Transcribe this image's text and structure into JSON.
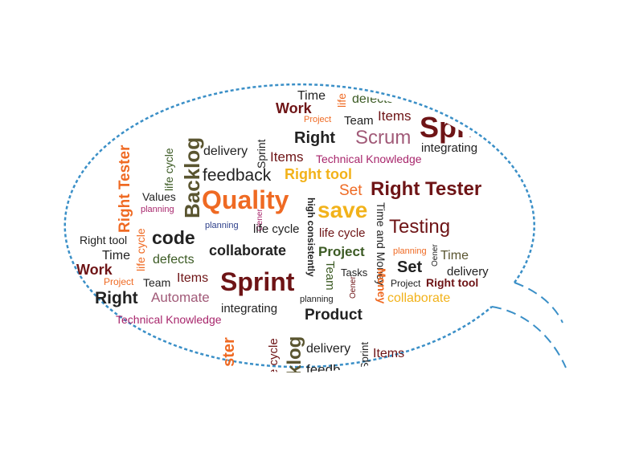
{
  "colors": {
    "outline": "#3a8fc7",
    "dark_red": "#6e1416",
    "orange": "#ef6a23",
    "olive": "#5a5530",
    "gold": "#f2b21a",
    "mauve": "#a15a78",
    "magenta": "#a8266c",
    "green": "#3b5a23",
    "gray": "#222222",
    "navy": "#2d3f8a"
  },
  "words": [
    {
      "id": "time-top",
      "text": "Time",
      "color": "#222222"
    },
    {
      "id": "life-top",
      "text": "life",
      "color": "#ef6a23"
    },
    {
      "id": "defects-top",
      "text": "defects",
      "color": "#3b5a23"
    },
    {
      "id": "work-top",
      "text": "Work",
      "color": "#6e1416"
    },
    {
      "id": "sprint-top",
      "text": "Sprint",
      "color": "#6e1416"
    },
    {
      "id": "project-top",
      "text": "Project",
      "color": "#ef6a23"
    },
    {
      "id": "team-top",
      "text": "Team",
      "color": "#222222"
    },
    {
      "id": "items-top",
      "text": "Items",
      "color": "#6e1416"
    },
    {
      "id": "right-top",
      "text": "Right",
      "color": "#222222"
    },
    {
      "id": "scrum",
      "text": "Scrum",
      "color": "#a15a78"
    },
    {
      "id": "integrating-top",
      "text": "integrating",
      "color": "#222222"
    },
    {
      "id": "backlog",
      "text": "Backlog",
      "color": "#5a5530"
    },
    {
      "id": "life-cycle-v1",
      "text": "life cycle",
      "color": "#3b5a23"
    },
    {
      "id": "delivery-top",
      "text": "delivery",
      "color": "#222222"
    },
    {
      "id": "sprint-v1",
      "text": "Sprint",
      "color": "#222222"
    },
    {
      "id": "items-mid",
      "text": "Items",
      "color": "#6e1416"
    },
    {
      "id": "technical-knowledge-top",
      "text": "Technical Knowledge",
      "color": "#a8266c"
    },
    {
      "id": "right-tester-v",
      "text": "Right Tester",
      "color": "#ef6a23"
    },
    {
      "id": "feedback",
      "text": "feedback",
      "color": "#222222"
    },
    {
      "id": "right-tool-gold",
      "text": "Right tool",
      "color": "#f2b21a"
    },
    {
      "id": "set-orange",
      "text": "Set",
      "color": "#ef6a23"
    },
    {
      "id": "right-tester-main",
      "text": "Right Tester",
      "color": "#6e1416"
    },
    {
      "id": "values",
      "text": "Values",
      "color": "#222222"
    },
    {
      "id": "planning-1",
      "text": "planning",
      "color": "#a8266c"
    },
    {
      "id": "quality",
      "text": "Quality",
      "color": "#ef6a23"
    },
    {
      "id": "high-consistently",
      "text": "high consistently",
      "color": "#222222"
    },
    {
      "id": "save",
      "text": "save",
      "color": "#f2b21a"
    },
    {
      "id": "time-and-money",
      "text": "Time and Money",
      "color": "#222222"
    },
    {
      "id": "testing",
      "text": "Testing",
      "color": "#6e1416"
    },
    {
      "id": "oener-1",
      "text": "Oener",
      "color": "#a8266c"
    },
    {
      "id": "planning-2",
      "text": "planning",
      "color": "#2d3f8a"
    },
    {
      "id": "life-cycle-mid",
      "text": "life cycle",
      "color": "#222222"
    },
    {
      "id": "life-cycle-red",
      "text": "life cycle",
      "color": "#6e1416"
    },
    {
      "id": "code",
      "text": "code",
      "color": "#222222"
    },
    {
      "id": "right-tool-left",
      "text": "Right tool",
      "color": "#222222"
    },
    {
      "id": "life-cycle-v2",
      "text": "life cycle",
      "color": "#ef6a23"
    },
    {
      "id": "collaborate-main",
      "text": "collaborate",
      "color": "#222222"
    },
    {
      "id": "project-green",
      "text": "Project",
      "color": "#3b5a23"
    },
    {
      "id": "planning-3",
      "text": "planning",
      "color": "#ef6a23"
    },
    {
      "id": "oener-2",
      "text": "Oener",
      "color": "#222222"
    },
    {
      "id": "time-right",
      "text": "Time",
      "color": "#5a5530"
    },
    {
      "id": "time-left",
      "text": "Time",
      "color": "#222222"
    },
    {
      "id": "defects-left",
      "text": "defects",
      "color": "#3b5a23"
    },
    {
      "id": "team-v",
      "text": "Team",
      "color": "#3b5a23"
    },
    {
      "id": "set-main",
      "text": "Set",
      "color": "#222222"
    },
    {
      "id": "work-left",
      "text": "Work",
      "color": "#6e1416"
    },
    {
      "id": "tasks",
      "text": "Tasks",
      "color": "#222222"
    },
    {
      "id": "money",
      "text": "Money",
      "color": "#ef6a23"
    },
    {
      "id": "delivery-right",
      "text": "delivery",
      "color": "#222222"
    },
    {
      "id": "items-left",
      "text": "Items",
      "color": "#6e1416"
    },
    {
      "id": "sprint-main",
      "text": "Sprint",
      "color": "#6e1416"
    },
    {
      "id": "project-left",
      "text": "Project",
      "color": "#ef6a23"
    },
    {
      "id": "team-left",
      "text": "Team",
      "color": "#222222"
    },
    {
      "id": "project-right",
      "text": "Project",
      "color": "#222222"
    },
    {
      "id": "right-tool-right",
      "text": "Right tool",
      "color": "#6e1416"
    },
    {
      "id": "oener-3",
      "text": "Oener",
      "color": "#6e1416"
    },
    {
      "id": "right-main",
      "text": "Right",
      "color": "#222222"
    },
    {
      "id": "automate",
      "text": "Automate",
      "color": "#a15a78"
    },
    {
      "id": "planning-4",
      "text": "planning",
      "color": "#222222"
    },
    {
      "id": "collaborate-gold",
      "text": "collaborate",
      "color": "#f2b21a"
    },
    {
      "id": "integrating-bottom",
      "text": "integrating",
      "color": "#222222"
    },
    {
      "id": "product",
      "text": "Product",
      "color": "#222222"
    },
    {
      "id": "technical-knowledge-bottom",
      "text": "Technical Knowledge",
      "color": "#a8266c"
    },
    {
      "id": "klog",
      "text": "klog",
      "color": "#5a5530"
    },
    {
      "id": "ester",
      "text": "ester",
      "color": "#ef6a23"
    },
    {
      "id": "e-cycle",
      "text": "e cycle",
      "color": "#6e1416"
    },
    {
      "id": "delivery-bottom",
      "text": "delivery",
      "color": "#222222"
    },
    {
      "id": "sprint-v2",
      "text": "Sprint",
      "color": "#222222"
    },
    {
      "id": "items-bottom",
      "text": "Items",
      "color": "#6e1416"
    },
    {
      "id": "feedb",
      "text": "feedb",
      "color": "#222222"
    }
  ]
}
